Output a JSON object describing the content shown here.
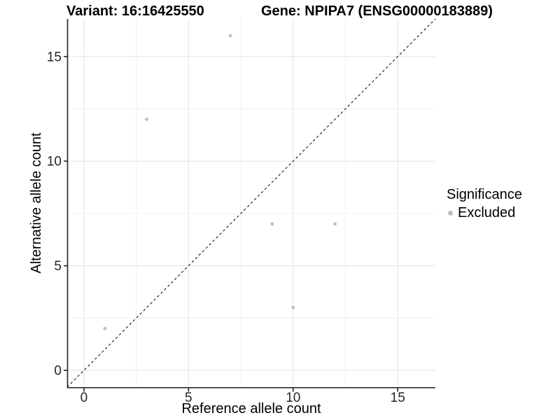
{
  "chart_data": {
    "type": "scatter",
    "titles": {
      "variant": "Variant: 16:16425550",
      "gene": "Gene: NPIPA7 (ENSG00000183889)"
    },
    "xlabel": "Reference allele count",
    "ylabel": "Alternative allele count",
    "xlim": [
      -0.8,
      16.8
    ],
    "ylim": [
      -0.8,
      16.8
    ],
    "x_ticks": [
      0,
      5,
      10,
      15
    ],
    "y_ticks": [
      0,
      5,
      10,
      15
    ],
    "x_minor_ticks": [
      2.5,
      7.5,
      12.5
    ],
    "y_minor_ticks": [
      2.5,
      7.5,
      12.5
    ],
    "grid": true,
    "identity_line": {
      "slope": 1,
      "intercept": 0,
      "style": "dashed",
      "color": "#111111"
    },
    "series": [
      {
        "name": "Excluded",
        "color": "#bdbdbd",
        "points": [
          {
            "x": 1,
            "y": 2
          },
          {
            "x": 3,
            "y": 12
          },
          {
            "x": 7,
            "y": 16
          },
          {
            "x": 9,
            "y": 7
          },
          {
            "x": 10,
            "y": 3
          },
          {
            "x": 12,
            "y": 7
          }
        ]
      }
    ],
    "legend": {
      "title": "Significance",
      "position": "right",
      "items": [
        {
          "label": "Excluded",
          "color": "#bdbdbd"
        }
      ]
    },
    "colors": {
      "grid_major": "#e3e3e3",
      "grid_minor": "#f0f0f0",
      "axis_line": "#2b2b2b",
      "tick_label": "#262626",
      "point": "#bdbdbd",
      "background": "#ffffff"
    }
  }
}
